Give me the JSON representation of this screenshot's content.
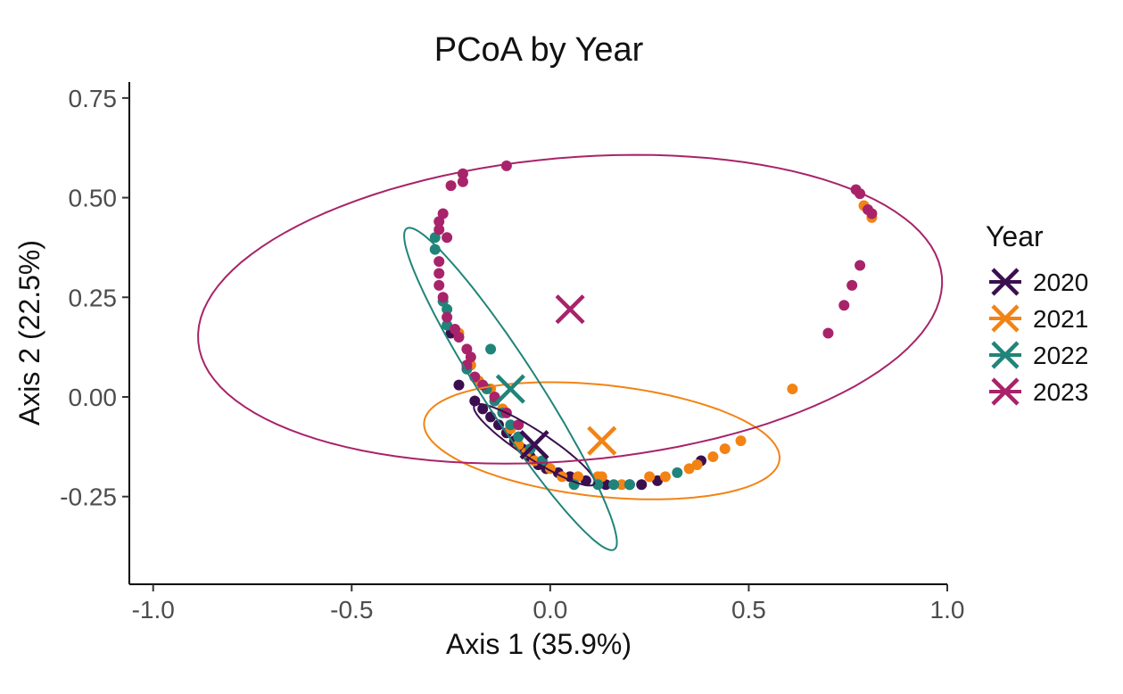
{
  "chart_data": {
    "type": "scatter",
    "title": "PCoA by Year",
    "xlabel": "Axis 1 (35.9%)",
    "ylabel": "Axis 2 (22.5%)",
    "xlim": [
      -1.06,
      1.0
    ],
    "ylim": [
      -0.47,
      0.79
    ],
    "x_ticks": [
      -1.0,
      -0.5,
      0.0,
      0.5,
      1.0
    ],
    "x_tick_labels": [
      "-1.0",
      "-0.5",
      "0.0",
      "0.5",
      "1.0"
    ],
    "y_ticks": [
      -0.25,
      0.0,
      0.25,
      0.5,
      0.75
    ],
    "y_tick_labels": [
      "-0.25",
      "0.00",
      "0.25",
      "0.50",
      "0.75"
    ],
    "grid": false,
    "legend": {
      "title": "Year",
      "position": "right"
    },
    "series": [
      {
        "name": "2020",
        "color": "#3b0f4f",
        "centroid": [
          -0.04,
          -0.12
        ],
        "ellipse": {
          "center": [
            -0.04,
            -0.12
          ],
          "semi_major": 0.18,
          "semi_minor": 0.035,
          "angle_deg": -33
        },
        "points": [
          [
            -0.19,
            -0.01
          ],
          [
            -0.17,
            -0.03
          ],
          [
            -0.15,
            -0.05
          ],
          [
            -0.13,
            -0.07
          ],
          [
            -0.11,
            -0.09
          ],
          [
            -0.09,
            -0.11
          ],
          [
            -0.07,
            -0.13
          ],
          [
            -0.05,
            -0.15
          ],
          [
            -0.03,
            -0.17
          ],
          [
            -0.01,
            -0.18
          ],
          [
            0.02,
            -0.19
          ],
          [
            0.05,
            -0.2
          ],
          [
            0.09,
            -0.21
          ],
          [
            0.14,
            -0.22
          ],
          [
            0.2,
            -0.22
          ],
          [
            0.23,
            -0.22
          ],
          [
            0.27,
            -0.21
          ],
          [
            0.38,
            -0.16
          ],
          [
            -0.23,
            0.03
          ],
          [
            -0.25,
            0.16
          ]
        ]
      },
      {
        "name": "2021",
        "color": "#f28314",
        "centroid": [
          0.13,
          -0.11
        ],
        "ellipse": {
          "center": [
            0.13,
            -0.11
          ],
          "semi_major": 0.45,
          "semi_minor": 0.14,
          "angle_deg": -6
        },
        "points": [
          [
            -0.23,
            0.16
          ],
          [
            -0.2,
            0.08
          ],
          [
            -0.18,
            0.04
          ],
          [
            -0.15,
            0.02
          ],
          [
            -0.12,
            -0.03
          ],
          [
            -0.1,
            -0.08
          ],
          [
            -0.08,
            -0.12
          ],
          [
            -0.06,
            -0.14
          ],
          [
            -0.04,
            -0.16
          ],
          [
            0.0,
            -0.18
          ],
          [
            0.03,
            -0.2
          ],
          [
            0.07,
            -0.2
          ],
          [
            0.12,
            -0.2
          ],
          [
            0.13,
            -0.2
          ],
          [
            0.18,
            -0.22
          ],
          [
            0.25,
            -0.2
          ],
          [
            0.29,
            -0.2
          ],
          [
            0.35,
            -0.18
          ],
          [
            0.37,
            -0.17
          ],
          [
            0.41,
            -0.15
          ],
          [
            0.44,
            -0.13
          ],
          [
            0.48,
            -0.11
          ],
          [
            0.61,
            0.02
          ],
          [
            0.79,
            0.48
          ],
          [
            0.81,
            0.45
          ]
        ]
      },
      {
        "name": "2022",
        "color": "#20847a",
        "centroid": [
          -0.1,
          0.02
        ],
        "ellipse": {
          "center": [
            -0.1,
            0.02
          ],
          "semi_major": 0.48,
          "semi_minor": 0.07,
          "angle_deg": -57
        },
        "points": [
          [
            -0.29,
            0.4
          ],
          [
            -0.29,
            0.37
          ],
          [
            -0.27,
            0.24
          ],
          [
            -0.26,
            0.22
          ],
          [
            -0.26,
            0.18
          ],
          [
            -0.15,
            0.12
          ],
          [
            -0.21,
            0.07
          ],
          [
            -0.19,
            0.05
          ],
          [
            -0.16,
            0.02
          ],
          [
            -0.14,
            -0.01
          ],
          [
            -0.12,
            -0.04
          ],
          [
            -0.1,
            -0.07
          ],
          [
            -0.08,
            -0.1
          ],
          [
            -0.05,
            -0.13
          ],
          [
            -0.02,
            -0.16
          ],
          [
            0.06,
            -0.22
          ],
          [
            0.12,
            -0.22
          ],
          [
            0.16,
            -0.22
          ],
          [
            0.2,
            -0.22
          ],
          [
            0.32,
            -0.19
          ]
        ]
      },
      {
        "name": "2023",
        "color": "#a82369",
        "centroid": [
          0.05,
          0.22
        ],
        "ellipse": {
          "center": [
            0.05,
            0.22
          ],
          "semi_major": 0.94,
          "semi_minor": 0.38,
          "angle_deg": 5
        },
        "points": [
          [
            -0.11,
            0.58
          ],
          [
            -0.22,
            0.56
          ],
          [
            -0.22,
            0.54
          ],
          [
            -0.25,
            0.53
          ],
          [
            -0.27,
            0.46
          ],
          [
            -0.28,
            0.44
          ],
          [
            -0.28,
            0.42
          ],
          [
            -0.26,
            0.4
          ],
          [
            -0.28,
            0.34
          ],
          [
            -0.28,
            0.31
          ],
          [
            -0.28,
            0.28
          ],
          [
            -0.27,
            0.25
          ],
          [
            -0.26,
            0.2
          ],
          [
            -0.24,
            0.17
          ],
          [
            -0.23,
            0.15
          ],
          [
            -0.21,
            0.12
          ],
          [
            -0.2,
            0.1
          ],
          [
            -0.21,
            0.08
          ],
          [
            -0.19,
            0.05
          ],
          [
            -0.17,
            0.03
          ],
          [
            -0.14,
            0.0
          ],
          [
            -0.11,
            -0.04
          ],
          [
            -0.08,
            -0.07
          ],
          [
            0.77,
            0.52
          ],
          [
            0.78,
            0.51
          ],
          [
            0.8,
            0.47
          ],
          [
            0.81,
            0.46
          ],
          [
            0.78,
            0.33
          ],
          [
            0.76,
            0.28
          ],
          [
            0.74,
            0.23
          ],
          [
            0.7,
            0.16
          ]
        ]
      }
    ]
  }
}
